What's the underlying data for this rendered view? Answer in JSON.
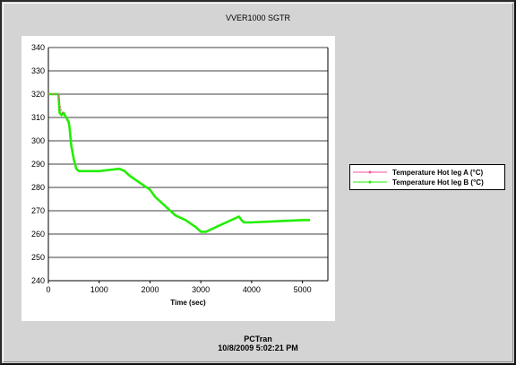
{
  "chart_data": {
    "type": "line",
    "title": "VVER1000 SGTR",
    "xlabel": "Time (sec)",
    "ylabel": "",
    "xlim": [
      0,
      5500
    ],
    "ylim": [
      240,
      340
    ],
    "x_ticks": [
      0,
      1000,
      2000,
      3000,
      4000,
      5000
    ],
    "y_ticks": [
      240,
      250,
      260,
      270,
      280,
      290,
      300,
      310,
      320,
      330,
      340
    ],
    "grid": "horizontal",
    "legend_position": "right",
    "series": [
      {
        "name": "Temperature Hot leg A (°C)",
        "color": "#ff4fa0",
        "x": [
          0,
          100,
          200,
          210,
          230,
          250,
          280
        ],
        "y": [
          320,
          320,
          320,
          318,
          315,
          313,
          312
        ]
      },
      {
        "name": "Temperature Hot leg B (°C)",
        "color": "#22ee00",
        "x": [
          0,
          100,
          200,
          220,
          260,
          300,
          350,
          400,
          420,
          450,
          500,
          550,
          600,
          800,
          1000,
          1200,
          1400,
          1500,
          1600,
          1800,
          2000,
          2100,
          2300,
          2500,
          2700,
          2900,
          3000,
          3100,
          3200,
          3400,
          3600,
          3750,
          3800,
          3850,
          3900,
          4000,
          4500,
          5000,
          5150
        ],
        "y": [
          320,
          320,
          320,
          312,
          311,
          312,
          310,
          308,
          305,
          298,
          292,
          288,
          287,
          287,
          287,
          287.5,
          288,
          287,
          285,
          282,
          279,
          276,
          272,
          268,
          266,
          263,
          261,
          261,
          262,
          264,
          266,
          267.5,
          266,
          265,
          265,
          265,
          265.5,
          266,
          266
        ]
      }
    ]
  },
  "footer": {
    "app_name": "PCTran",
    "timestamp": "10/8/2009 5:02:21 PM"
  }
}
